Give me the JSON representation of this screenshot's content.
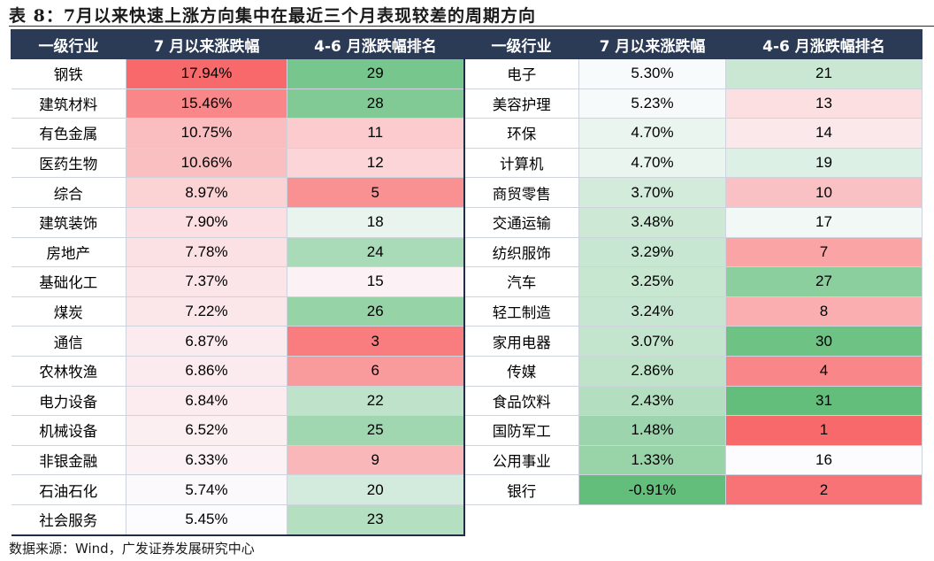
{
  "title": "表 8：7月以来快速上涨方向集中在最近三个月表现较差的周期方向",
  "headers": [
    "一级行业",
    "7 月以来涨跌幅",
    "4-6 月涨跌幅排名",
    "一级行业",
    "7 月以来涨跌幅",
    "4-6 月涨跌幅排名"
  ],
  "left_rows": [
    {
      "industry": "钢铁",
      "change": "17.94%",
      "rank": "29"
    },
    {
      "industry": "建筑材料",
      "change": "15.46%",
      "rank": "28"
    },
    {
      "industry": "有色金属",
      "change": "10.75%",
      "rank": "11"
    },
    {
      "industry": "医药生物",
      "change": "10.66%",
      "rank": "12"
    },
    {
      "industry": "综合",
      "change": "8.97%",
      "rank": "5"
    },
    {
      "industry": "建筑装饰",
      "change": "7.90%",
      "rank": "18"
    },
    {
      "industry": "房地产",
      "change": "7.78%",
      "rank": "24"
    },
    {
      "industry": "基础化工",
      "change": "7.37%",
      "rank": "15"
    },
    {
      "industry": "煤炭",
      "change": "7.22%",
      "rank": "26"
    },
    {
      "industry": "通信",
      "change": "6.87%",
      "rank": "3"
    },
    {
      "industry": "农林牧渔",
      "change": "6.86%",
      "rank": "6"
    },
    {
      "industry": "电力设备",
      "change": "6.84%",
      "rank": "22"
    },
    {
      "industry": "机械设备",
      "change": "6.52%",
      "rank": "25"
    },
    {
      "industry": "非银金融",
      "change": "6.33%",
      "rank": "9"
    },
    {
      "industry": "石油石化",
      "change": "5.74%",
      "rank": "20"
    },
    {
      "industry": "社会服务",
      "change": "5.45%",
      "rank": "23"
    }
  ],
  "right_rows": [
    {
      "industry": "电子",
      "change": "5.30%",
      "rank": "21"
    },
    {
      "industry": "美容护理",
      "change": "5.23%",
      "rank": "13"
    },
    {
      "industry": "环保",
      "change": "4.70%",
      "rank": "14"
    },
    {
      "industry": "计算机",
      "change": "4.70%",
      "rank": "19"
    },
    {
      "industry": "商贸零售",
      "change": "3.70%",
      "rank": "10"
    },
    {
      "industry": "交通运输",
      "change": "3.48%",
      "rank": "17"
    },
    {
      "industry": "纺织服饰",
      "change": "3.29%",
      "rank": "7"
    },
    {
      "industry": "汽车",
      "change": "3.25%",
      "rank": "27"
    },
    {
      "industry": "轻工制造",
      "change": "3.24%",
      "rank": "8"
    },
    {
      "industry": "家用电器",
      "change": "3.07%",
      "rank": "30"
    },
    {
      "industry": "传媒",
      "change": "2.86%",
      "rank": "4"
    },
    {
      "industry": "食品饮料",
      "change": "2.43%",
      "rank": "31"
    },
    {
      "industry": "国防军工",
      "change": "1.48%",
      "rank": "1"
    },
    {
      "industry": "公用事业",
      "change": "1.33%",
      "rank": "16"
    },
    {
      "industry": "银行",
      "change": "-0.91%",
      "rank": "2"
    }
  ],
  "colors": {
    "header_bg": "#2b3a55",
    "high_red": "#f8696b",
    "low_green": "#63be7b",
    "mid_white": "#fcfcff"
  },
  "source": "数据来源：Wind，广发证券发展研究中心"
}
